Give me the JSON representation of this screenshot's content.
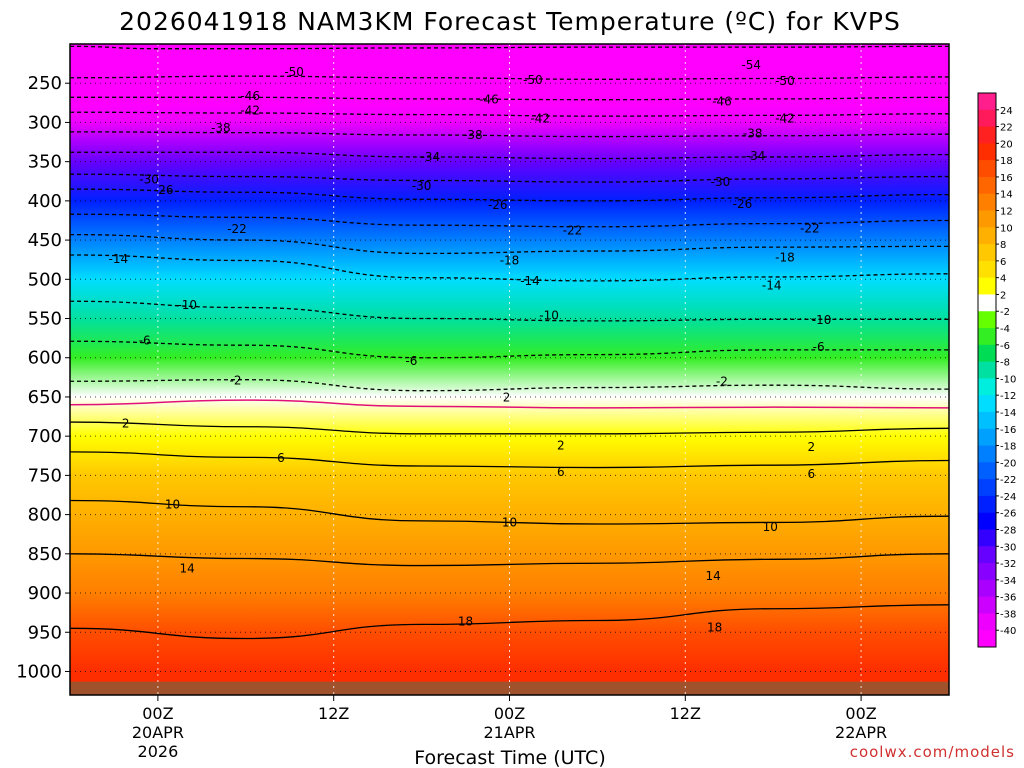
{
  "chart_data": {
    "type": "heatmap",
    "title": "2026041918 NAM3KM Forecast Temperature (ºC) for KVPS",
    "xlabel": "Forecast Time (UTC)",
    "ylabel": "",
    "x_ticks": [
      {
        "hour": 6,
        "lines": [
          "00Z",
          "20APR",
          "2026"
        ]
      },
      {
        "hour": 18,
        "lines": [
          "12Z"
        ]
      },
      {
        "hour": 30,
        "lines": [
          "00Z",
          "21APR"
        ]
      },
      {
        "hour": 42,
        "lines": [
          "12Z"
        ]
      },
      {
        "hour": 54,
        "lines": [
          "00Z",
          "22APR"
        ]
      }
    ],
    "x_range_hours": [
      0,
      60
    ],
    "pressure_levels_hpa": [
      250,
      300,
      350,
      400,
      450,
      500,
      550,
      600,
      650,
      700,
      750,
      800,
      850,
      900,
      950,
      1000
    ],
    "pressure_range_hpa": [
      200,
      1030
    ],
    "surface_pressure_hpa": 1013,
    "temperature_by_level_c": [
      {
        "p": 200,
        "t": -56
      },
      {
        "p": 250,
        "t": -51
      },
      {
        "p": 275,
        "t": -46
      },
      {
        "p": 300,
        "t": -40
      },
      {
        "p": 350,
        "t": -32
      },
      {
        "p": 400,
        "t": -25
      },
      {
        "p": 450,
        "t": -19
      },
      {
        "p": 500,
        "t": -13
      },
      {
        "p": 550,
        "t": -9
      },
      {
        "p": 600,
        "t": -5
      },
      {
        "p": 650,
        "t": 0
      },
      {
        "p": 700,
        "t": 3
      },
      {
        "p": 750,
        "t": 6
      },
      {
        "p": 800,
        "t": 9
      },
      {
        "p": 850,
        "t": 11
      },
      {
        "p": 900,
        "t": 13
      },
      {
        "p": 950,
        "t": 16
      },
      {
        "p": 1000,
        "t": 19
      }
    ],
    "colorbar": {
      "labels": [
        "24",
        "22",
        "20",
        "18",
        "16",
        "14",
        "12",
        "10",
        "8",
        "6",
        "4",
        "2",
        "-2",
        "-4",
        "-6",
        "-8",
        "-10",
        "-12",
        "-14",
        "-16",
        "-18",
        "-20",
        "-22",
        "-24",
        "-26",
        "-28",
        "-30",
        "-32",
        "-34",
        "-36",
        "-38",
        "-40"
      ],
      "colors": [
        "#ff1e8c",
        "#ff1a5c",
        "#ff2020",
        "#ff2e00",
        "#ff4d00",
        "#ff6600",
        "#ff7f00",
        "#ff9900",
        "#ffb000",
        "#ffc800",
        "#ffe000",
        "#ffff00",
        "#ffffff",
        "#66ff00",
        "#33ee22",
        "#00dd55",
        "#00e0a0",
        "#00eedd",
        "#00ddff",
        "#00c0ff",
        "#00a0ff",
        "#0080ff",
        "#0060ff",
        "#0040ff",
        "#0020ff",
        "#0000ff",
        "#3300ff",
        "#6600ff",
        "#8800ff",
        "#aa00ff",
        "#cc00ff",
        "#ee00ff",
        "#ff00ff"
      ]
    },
    "contours": [
      {
        "value": -54,
        "label": "-54",
        "style": "dashed",
        "at": [
          [
            0,
            203
          ],
          [
            6,
            206
          ],
          [
            12,
            206
          ],
          [
            24,
            205
          ],
          [
            36,
            204
          ],
          [
            48,
            204
          ],
          [
            60,
            203
          ]
        ],
        "labels_at": [
          [
            46.5,
            227
          ]
        ]
      },
      {
        "value": -50,
        "label": "-50",
        "style": "dashed",
        "at": [
          [
            0,
            243
          ],
          [
            12,
            241
          ],
          [
            24,
            243
          ],
          [
            36,
            245
          ],
          [
            48,
            244
          ],
          [
            60,
            242
          ]
        ],
        "labels_at": [
          [
            15.3,
            236
          ],
          [
            31.6,
            246
          ],
          [
            48.8,
            247
          ]
        ]
      },
      {
        "value": -46,
        "label": "-46",
        "style": "dashed",
        "at": [
          [
            0,
            268
          ],
          [
            12,
            268
          ],
          [
            24,
            270
          ],
          [
            36,
            271
          ],
          [
            48,
            270
          ],
          [
            60,
            268
          ]
        ],
        "labels_at": [
          [
            12.3,
            266
          ],
          [
            28.6,
            271
          ],
          [
            44.5,
            273
          ]
        ]
      },
      {
        "value": -42,
        "label": "-42",
        "style": "dashed",
        "at": [
          [
            0,
            287
          ],
          [
            12,
            288
          ],
          [
            24,
            290
          ],
          [
            36,
            292
          ],
          [
            48,
            291
          ],
          [
            60,
            289
          ]
        ],
        "labels_at": [
          [
            12.3,
            285
          ],
          [
            32.1,
            295
          ],
          [
            48.8,
            295
          ]
        ]
      },
      {
        "value": -38,
        "label": "-38",
        "style": "dashed",
        "at": [
          [
            0,
            312
          ],
          [
            12,
            313
          ],
          [
            24,
            316
          ],
          [
            36,
            318
          ],
          [
            48,
            317
          ],
          [
            60,
            315
          ]
        ],
        "labels_at": [
          [
            10.3,
            307
          ],
          [
            27.5,
            316
          ],
          [
            46.6,
            314
          ]
        ]
      },
      {
        "value": -34,
        "label": "-34",
        "style": "dashed",
        "at": [
          [
            0,
            338
          ],
          [
            12,
            338
          ],
          [
            24,
            344
          ],
          [
            36,
            346
          ],
          [
            48,
            344
          ],
          [
            60,
            341
          ]
        ],
        "labels_at": [
          [
            24.6,
            344
          ],
          [
            46.8,
            343
          ]
        ]
      },
      {
        "value": -30,
        "label": "-30",
        "style": "dashed",
        "at": [
          [
            0,
            366
          ],
          [
            12,
            369
          ],
          [
            24,
            374
          ],
          [
            36,
            376
          ],
          [
            48,
            372
          ],
          [
            60,
            369
          ]
        ],
        "labels_at": [
          [
            5.4,
            373
          ],
          [
            24.0,
            381
          ],
          [
            44.4,
            376
          ]
        ]
      },
      {
        "value": -26,
        "label": "-26",
        "style": "dashed",
        "at": [
          [
            0,
            385
          ],
          [
            12,
            389
          ],
          [
            24,
            398
          ],
          [
            36,
            400
          ],
          [
            48,
            396
          ],
          [
            60,
            392
          ]
        ],
        "labels_at": [
          [
            6.4,
            386
          ],
          [
            29.2,
            405
          ],
          [
            45.9,
            404
          ]
        ]
      },
      {
        "value": -22,
        "label": "-22",
        "style": "dashed",
        "at": [
          [
            0,
            417
          ],
          [
            12,
            421
          ],
          [
            24,
            431
          ],
          [
            36,
            433
          ],
          [
            48,
            429
          ],
          [
            60,
            425
          ]
        ],
        "labels_at": [
          [
            11.4,
            436
          ],
          [
            34.3,
            438
          ],
          [
            50.5,
            435
          ]
        ]
      },
      {
        "value": -18,
        "label": "-18",
        "style": "dashed",
        "at": [
          [
            0,
            443
          ],
          [
            12,
            450
          ],
          [
            24,
            467
          ],
          [
            36,
            464
          ],
          [
            48,
            459
          ],
          [
            60,
            458
          ]
        ],
        "labels_at": [
          [
            30.0,
            476
          ],
          [
            48.8,
            472
          ]
        ]
      },
      {
        "value": -14,
        "label": "-14",
        "style": "dashed",
        "at": [
          [
            0,
            469
          ],
          [
            12,
            476
          ],
          [
            24,
            498
          ],
          [
            36,
            502
          ],
          [
            48,
            497
          ],
          [
            60,
            493
          ]
        ],
        "labels_at": [
          [
            3.3,
            474
          ],
          [
            31.4,
            502
          ],
          [
            47.9,
            508
          ]
        ]
      },
      {
        "value": -10,
        "label": "-10",
        "style": "dashed",
        "at": [
          [
            0,
            528
          ],
          [
            12,
            536
          ],
          [
            24,
            550
          ],
          [
            36,
            553
          ],
          [
            48,
            551
          ],
          [
            60,
            551
          ]
        ],
        "labels_at": [
          [
            8.0,
            533
          ],
          [
            32.7,
            546
          ],
          [
            51.3,
            552
          ]
        ]
      },
      {
        "value": -6,
        "label": "-6",
        "style": "dashed",
        "at": [
          [
            0,
            579
          ],
          [
            12,
            584
          ],
          [
            24,
            600
          ],
          [
            36,
            596
          ],
          [
            48,
            590
          ],
          [
            60,
            590
          ]
        ],
        "labels_at": [
          [
            5.1,
            578
          ],
          [
            23.3,
            604
          ],
          [
            51.1,
            586
          ]
        ]
      },
      {
        "value": -2,
        "label": "-2",
        "style": "dashed",
        "at": [
          [
            0,
            630
          ],
          [
            12,
            628
          ],
          [
            24,
            642
          ],
          [
            36,
            638
          ],
          [
            48,
            635
          ],
          [
            60,
            640
          ]
        ],
        "labels_at": [
          [
            11.3,
            629
          ],
          [
            44.5,
            630
          ]
        ]
      },
      {
        "value": 0,
        "label": "",
        "style": "freezing",
        "at": [
          [
            0,
            660
          ],
          [
            12,
            654
          ],
          [
            24,
            662
          ],
          [
            36,
            664
          ],
          [
            48,
            663
          ],
          [
            60,
            664
          ]
        ],
        "labels_at": []
      },
      {
        "value": 2,
        "label": "2",
        "style": "solid",
        "at": [
          [
            0,
            682
          ],
          [
            12,
            688
          ],
          [
            24,
            697
          ],
          [
            36,
            697
          ],
          [
            48,
            695
          ],
          [
            60,
            690
          ]
        ],
        "labels_at": [
          [
            3.8,
            684
          ],
          [
            29.8,
            651
          ],
          [
            33.5,
            712
          ],
          [
            50.6,
            714
          ]
        ]
      },
      {
        "value": 6,
        "label": "6",
        "style": "solid",
        "at": [
          [
            0,
            720
          ],
          [
            12,
            727
          ],
          [
            24,
            738
          ],
          [
            36,
            740
          ],
          [
            48,
            737
          ],
          [
            60,
            731
          ]
        ],
        "labels_at": [
          [
            14.4,
            728
          ],
          [
            33.5,
            746
          ],
          [
            50.6,
            748
          ]
        ]
      },
      {
        "value": 10,
        "label": "10",
        "style": "solid",
        "at": [
          [
            0,
            782
          ],
          [
            12,
            790
          ],
          [
            24,
            808
          ],
          [
            36,
            812
          ],
          [
            48,
            810
          ],
          [
            60,
            802
          ]
        ],
        "labels_at": [
          [
            7.0,
            787
          ],
          [
            30.0,
            810
          ],
          [
            47.8,
            816
          ]
        ]
      },
      {
        "value": 14,
        "label": "14",
        "style": "solid",
        "at": [
          [
            0,
            850
          ],
          [
            12,
            856
          ],
          [
            24,
            865
          ],
          [
            36,
            862
          ],
          [
            48,
            857
          ],
          [
            60,
            850
          ]
        ],
        "labels_at": [
          [
            43.9,
            878
          ],
          [
            8.0,
            869
          ]
        ]
      },
      {
        "value": 18,
        "label": "18",
        "style": "solid",
        "at": [
          [
            0,
            945
          ],
          [
            12,
            958
          ],
          [
            24,
            940
          ],
          [
            36,
            935
          ],
          [
            48,
            920
          ],
          [
            60,
            915
          ]
        ],
        "labels_at": [
          [
            27.0,
            936
          ],
          [
            44.0,
            944
          ]
        ]
      }
    ],
    "grid": true,
    "legend": "colorbar-right"
  },
  "watermark": "coolwx.com/models"
}
